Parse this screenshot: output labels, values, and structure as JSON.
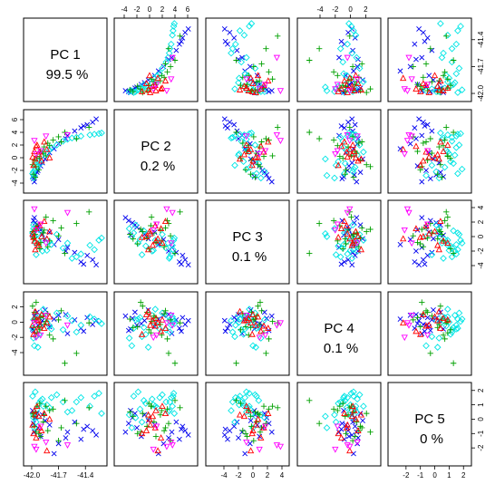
{
  "chart_data": {
    "type": "scatter",
    "layout": "scatterplot-matrix",
    "variables": [
      "PC 1",
      "PC 2",
      "PC 3",
      "PC 4",
      "PC 5"
    ],
    "variance_labels": [
      "99.5 %",
      "0.2 %",
      "0.1 %",
      "0.1 %",
      "0 %"
    ],
    "ranges": [
      [
        -42.05,
        -41.2
      ],
      [
        -5,
        7
      ],
      [
        -6,
        4.5
      ],
      [
        -6.5,
        3.5
      ],
      [
        -3,
        2.3
      ]
    ],
    "ticks": [
      {
        "values": [
          -42.0,
          -41.7,
          -41.4
        ],
        "labels": [
          "-42.0",
          "-41.7",
          "-41.4"
        ]
      },
      {
        "values": [
          -4,
          -2,
          0,
          2,
          4,
          6
        ],
        "labels": [
          "-4",
          "-2",
          "0",
          "2",
          "4",
          "6"
        ]
      },
      {
        "values": [
          -4,
          -2,
          0,
          2,
          4
        ],
        "labels": [
          "-4",
          "-2",
          "0",
          "2",
          "4"
        ]
      },
      {
        "values": [
          -4,
          -2,
          0,
          2
        ],
        "labels": [
          "-4",
          "-2",
          "0",
          "2"
        ]
      },
      {
        "values": [
          -2,
          -1,
          0,
          1,
          2
        ],
        "labels": [
          "-2",
          "-1",
          "0",
          "1",
          "2"
        ]
      }
    ],
    "groups": [
      {
        "marker": "cross",
        "color": "#0000ee"
      },
      {
        "marker": "diamond",
        "color": "#00e5e5"
      },
      {
        "marker": "plus",
        "color": "#00a000"
      },
      {
        "marker": "triangle-up",
        "color": "#ff0000"
      },
      {
        "marker": "triangle-down",
        "color": "#ff00ff"
      }
    ],
    "points": [
      {
        "g": 0,
        "v": [
          -41.28,
          6.1,
          -3.9,
          0.2,
          -1.1
        ]
      },
      {
        "g": 0,
        "v": [
          -41.32,
          5.6,
          -3.2,
          -0.3,
          -0.8
        ]
      },
      {
        "g": 0,
        "v": [
          -41.38,
          5.2,
          -2.6,
          0.6,
          -0.5
        ]
      },
      {
        "g": 0,
        "v": [
          -41.45,
          4.7,
          -3.5,
          -0.8,
          -1.4
        ]
      },
      {
        "g": 0,
        "v": [
          -41.52,
          4.2,
          -2.2,
          0.3,
          -0.2
        ]
      },
      {
        "g": 0,
        "v": [
          -41.6,
          3.5,
          -1.5,
          -1.5,
          -0.9
        ]
      },
      {
        "g": 0,
        "v": [
          -41.7,
          2.2,
          -0.4,
          0.9,
          -1.7
        ]
      },
      {
        "g": 0,
        "v": [
          -41.8,
          0.8,
          0.6,
          -0.6,
          -0.4
        ]
      },
      {
        "g": 0,
        "v": [
          -41.88,
          -0.8,
          0.3,
          0.2,
          0.3
        ]
      },
      {
        "g": 0,
        "v": [
          -41.93,
          -2.0,
          1.3,
          -0.4,
          -0.6
        ]
      },
      {
        "g": 0,
        "v": [
          -41.96,
          -2.7,
          1.9,
          0.5,
          0.1
        ]
      },
      {
        "g": 0,
        "v": [
          -41.98,
          -3.3,
          2.2,
          -1.1,
          -0.3
        ]
      },
      {
        "g": 0,
        "v": [
          -41.97,
          -3.8,
          2.6,
          0.8,
          -0.9
        ]
      },
      {
        "g": 0,
        "v": [
          -41.94,
          -2.3,
          1.6,
          1.3,
          0.4
        ]
      },
      {
        "g": 0,
        "v": [
          -41.9,
          -1.3,
          0.9,
          -0.2,
          -1.2
        ]
      },
      {
        "g": 0,
        "v": [
          -41.75,
          1.4,
          -1.1,
          0.4,
          -2.4
        ]
      },
      {
        "g": 0,
        "v": [
          -41.62,
          3.0,
          -2.0,
          1.0,
          -1.3
        ]
      },
      {
        "g": 0,
        "v": [
          -41.42,
          5.0,
          -3.8,
          -1.2,
          -0.7
        ]
      },
      {
        "g": 0,
        "v": [
          -41.99,
          -3.0,
          0.2,
          -0.9,
          0.6
        ]
      },
      {
        "g": 0,
        "v": [
          -41.85,
          -0.2,
          -0.3,
          1.6,
          -0.1
        ]
      },
      {
        "g": 1,
        "v": [
          -41.99,
          -2.5,
          0.5,
          -0.8,
          1.6
        ]
      },
      {
        "g": 1,
        "v": [
          -41.96,
          -1.8,
          -0.9,
          0.4,
          1.9
        ]
      },
      {
        "g": 1,
        "v": [
          -41.92,
          -0.6,
          -1.3,
          -1.6,
          1.1
        ]
      },
      {
        "g": 1,
        "v": [
          -41.88,
          0.4,
          -2.0,
          0.9,
          1.4
        ]
      },
      {
        "g": 1,
        "v": [
          -41.8,
          1.2,
          -0.7,
          -0.5,
          0.8
        ]
      },
      {
        "g": 1,
        "v": [
          -41.72,
          2.0,
          0.3,
          1.2,
          1.7
        ]
      },
      {
        "g": 1,
        "v": [
          -41.65,
          2.6,
          -1.6,
          -1.0,
          1.2
        ]
      },
      {
        "g": 1,
        "v": [
          -41.55,
          3.1,
          -3.0,
          0.2,
          0.6
        ]
      },
      {
        "g": 1,
        "v": [
          -41.45,
          3.4,
          -2.4,
          -0.4,
          1.5
        ]
      },
      {
        "g": 1,
        "v": [
          -41.35,
          3.6,
          -1.2,
          0.7,
          0.9
        ]
      },
      {
        "g": 1,
        "v": [
          -41.25,
          3.8,
          -0.5,
          0.1,
          1.8
        ]
      },
      {
        "g": 1,
        "v": [
          -41.98,
          -3.2,
          1.1,
          -2.1,
          0.3
        ]
      },
      {
        "g": 1,
        "v": [
          -41.97,
          -2.8,
          0.0,
          -3.1,
          -0.6
        ]
      },
      {
        "g": 1,
        "v": [
          -41.94,
          -1.5,
          -0.4,
          0.6,
          0.7
        ]
      },
      {
        "g": 1,
        "v": [
          -41.9,
          -0.9,
          0.8,
          -0.7,
          1.3
        ]
      },
      {
        "g": 1,
        "v": [
          -41.83,
          0.6,
          -1.9,
          0.0,
          1.0
        ]
      },
      {
        "g": 1,
        "v": [
          -41.6,
          2.9,
          -0.9,
          0.8,
          0.5
        ]
      },
      {
        "g": 1,
        "v": [
          -41.5,
          3.2,
          -2.8,
          -1.3,
          1.2
        ]
      },
      {
        "g": 1,
        "v": [
          -41.3,
          3.7,
          -1.8,
          0.4,
          1.6
        ]
      },
      {
        "g": 1,
        "v": [
          -41.22,
          3.9,
          -0.2,
          -0.2,
          0.4
        ]
      },
      {
        "g": 1,
        "v": [
          -41.98,
          -2.2,
          1.6,
          0.3,
          0.1
        ]
      },
      {
        "g": 1,
        "v": [
          -41.95,
          -1.2,
          -2.5,
          -1.9,
          -0.2
        ]
      },
      {
        "g": 1,
        "v": [
          -41.93,
          -0.2,
          0.4,
          -3.3,
          0.2
        ]
      },
      {
        "g": 1,
        "v": [
          -41.87,
          0.9,
          -0.5,
          1.7,
          0.9
        ]
      },
      {
        "g": 1,
        "v": [
          -41.78,
          1.6,
          -1.1,
          -0.9,
          1.5
        ]
      },
      {
        "g": 2,
        "v": [
          -41.99,
          -1.1,
          0.7,
          2.1,
          0.4
        ]
      },
      {
        "g": 2,
        "v": [
          -41.97,
          -0.4,
          -0.2,
          1.3,
          -0.5
        ]
      },
      {
        "g": 2,
        "v": [
          -41.94,
          0.2,
          1.5,
          -1.4,
          0.9
        ]
      },
      {
        "g": 2,
        "v": [
          -41.9,
          1.0,
          -0.8,
          0.6,
          -1.2
        ]
      },
      {
        "g": 2,
        "v": [
          -41.86,
          1.7,
          0.9,
          -0.3,
          0.3
        ]
      },
      {
        "g": 2,
        "v": [
          -41.82,
          2.3,
          -1.4,
          1.1,
          -0.8
        ]
      },
      {
        "g": 2,
        "v": [
          -41.76,
          2.8,
          2.2,
          -2.2,
          0.7
        ]
      },
      {
        "g": 2,
        "v": [
          -41.7,
          3.3,
          0.1,
          0.3,
          -1.5
        ]
      },
      {
        "g": 2,
        "v": [
          -41.63,
          4.0,
          -2.3,
          -5.4,
          1.3
        ]
      },
      {
        "g": 2,
        "v": [
          -41.5,
          3.0,
          1.8,
          -4.1,
          -0.3
        ]
      },
      {
        "g": 2,
        "v": [
          -41.36,
          4.8,
          3.4,
          -0.1,
          0.8
        ]
      },
      {
        "g": 2,
        "v": [
          -41.98,
          -2.6,
          -0.3,
          -0.7,
          0.2
        ]
      },
      {
        "g": 2,
        "v": [
          -41.95,
          -1.4,
          1.0,
          2.6,
          -0.9
        ]
      },
      {
        "g": 2,
        "v": [
          -41.91,
          -0.1,
          -1.7,
          -1.0,
          1.1
        ]
      },
      {
        "g": 2,
        "v": [
          -41.87,
          0.7,
          0.5,
          0.8,
          -0.2
        ]
      },
      {
        "g": 2,
        "v": [
          -41.8,
          1.9,
          -0.6,
          -1.7,
          0.6
        ]
      },
      {
        "g": 2,
        "v": [
          -41.67,
          2.5,
          1.2,
          1.5,
          -0.6
        ]
      },
      {
        "g": 2,
        "v": [
          -41.96,
          -3.1,
          0.3,
          0.4,
          0.5
        ]
      },
      {
        "g": 2,
        "v": [
          -41.92,
          -1.9,
          -1.0,
          -0.6,
          -1.0
        ]
      },
      {
        "g": 2,
        "v": [
          -41.84,
          0.3,
          2.7,
          0.1,
          0.9
        ]
      },
      {
        "g": 3,
        "v": [
          -41.99,
          0.1,
          0.4,
          -0.4,
          -0.4
        ]
      },
      {
        "g": 3,
        "v": [
          -41.97,
          1.0,
          -0.6,
          0.5,
          0.6
        ]
      },
      {
        "g": 3,
        "v": [
          -41.95,
          1.8,
          1.1,
          -1.2,
          -1.3
        ]
      },
      {
        "g": 3,
        "v": [
          -41.92,
          0.5,
          -1.2,
          0.2,
          0.2
        ]
      },
      {
        "g": 3,
        "v": [
          -41.89,
          -0.5,
          0.0,
          1.0,
          -0.8
        ]
      },
      {
        "g": 3,
        "v": [
          -41.86,
          2.5,
          2.1,
          -0.8,
          0.4
        ]
      },
      {
        "g": 3,
        "v": [
          -41.83,
          1.3,
          -0.3,
          -0.1,
          -2.2
        ]
      },
      {
        "g": 3,
        "v": [
          -41.8,
          0.0,
          0.7,
          0.7,
          0.0
        ]
      },
      {
        "g": 3,
        "v": [
          -41.98,
          -1.2,
          -0.1,
          -1.6,
          -1.0
        ]
      },
      {
        "g": 3,
        "v": [
          -41.94,
          2.0,
          -0.9,
          0.3,
          0.9
        ]
      },
      {
        "g": 3,
        "v": [
          -41.91,
          0.9,
          1.5,
          -0.5,
          -0.6
        ]
      },
      {
        "g": 3,
        "v": [
          -41.96,
          -0.2,
          -1.8,
          1.4,
          0.3
        ]
      },
      {
        "g": 4,
        "v": [
          -41.97,
          2.7,
          3.8,
          -0.1,
          -1.9
        ]
      },
      {
        "g": 4,
        "v": [
          -41.9,
          1.1,
          1.7,
          -1.7,
          -0.5
        ]
      },
      {
        "g": 4,
        "v": [
          -41.84,
          3.4,
          -0.9,
          0.9,
          -1.6
        ]
      },
      {
        "g": 4,
        "v": [
          -41.95,
          0.6,
          0.9,
          -2.0,
          -2.1
        ]
      },
      {
        "g": 4,
        "v": [
          -41.6,
          3.6,
          3.3,
          -0.4,
          -1.8
        ]
      }
    ]
  }
}
